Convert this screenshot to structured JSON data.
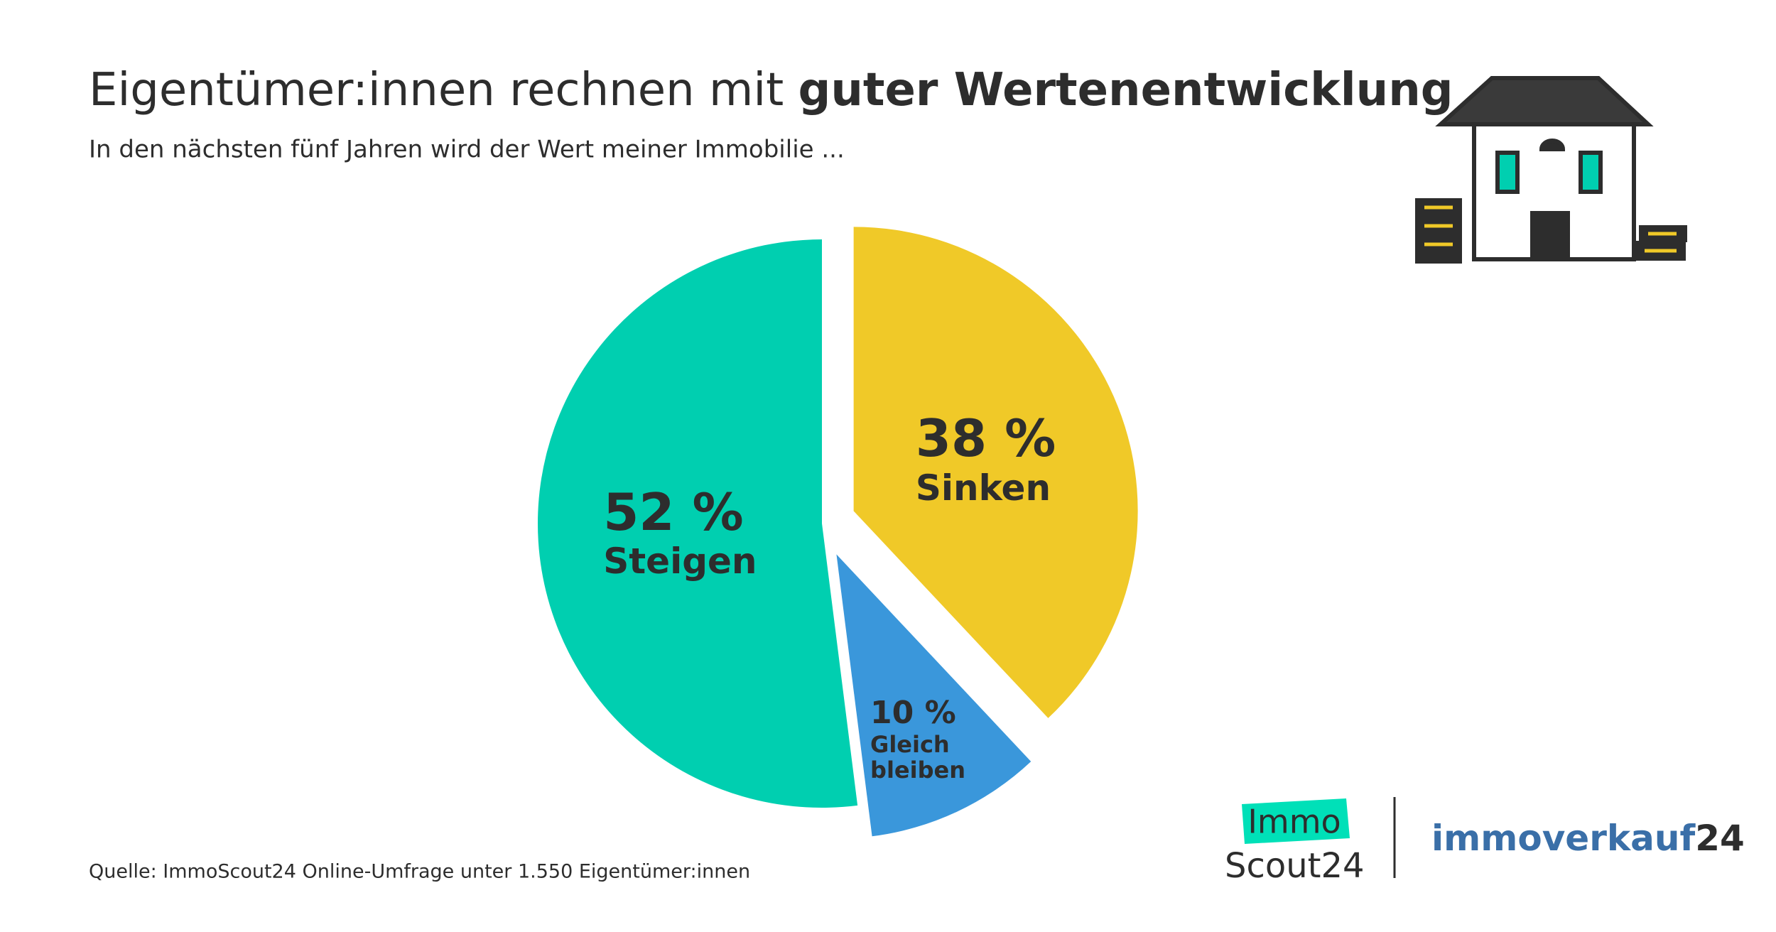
{
  "chart_data": {
    "type": "pie",
    "title": {
      "text": "Eigentümer:innen rechnen mit",
      "emphasis": "guter Wertenentwicklung"
    },
    "subtitle": "In den nächsten fünf Jahren wird der Wert meiner Immobilie ...",
    "categories": [
      "Steigen",
      "Sinken",
      "Gleich bleiben"
    ],
    "values": [
      52,
      38,
      10
    ],
    "value_labels": [
      "52 %",
      "38 %",
      "10 %"
    ],
    "colors": [
      "#00cfb0",
      "#f0c928",
      "#3a97db"
    ],
    "source": "Quelle: ImmoScout24 Online-Umfrage unter 1.550 Eigentümer:innen"
  },
  "logos": {
    "immo": "Immo",
    "scout": "Scout24",
    "immoverkauf": "immoverkauf",
    "immoverkauf_num": "24"
  }
}
